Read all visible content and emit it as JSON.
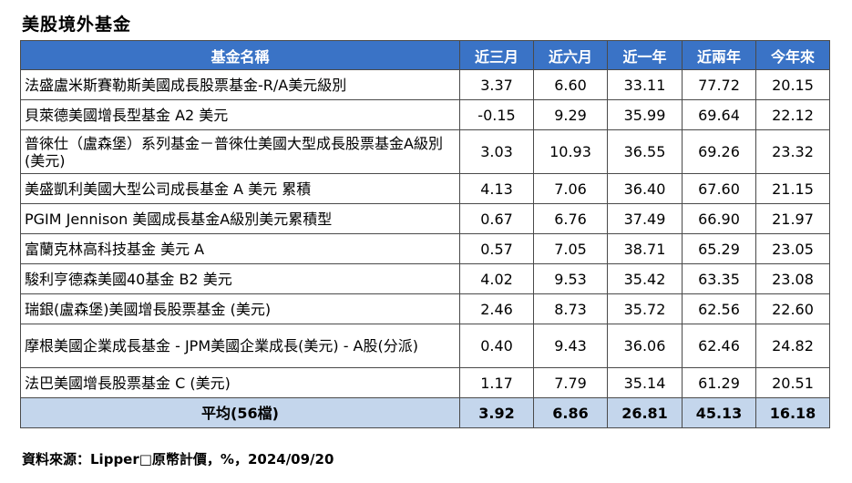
{
  "page": {
    "title": "美股境外基金",
    "source": "資料來源：Lipper□原幣計價，%，2024/09/20"
  },
  "table": {
    "headers": [
      "基金名稱",
      "近三月",
      "近六月",
      "近一年",
      "近兩年",
      "今年來"
    ],
    "rows": [
      {
        "name": "法盛盧米斯賽勒斯美國成長股票基金-R/A美元級別",
        "values": [
          "3.37",
          "6.60",
          "33.11",
          "77.72",
          "20.15"
        ]
      },
      {
        "name": "貝萊德美國增長型基金 A2 美元",
        "values": [
          "-0.15",
          "9.29",
          "35.99",
          "69.64",
          "22.12"
        ]
      },
      {
        "name": "普徠仕（盧森堡）系列基金－普徠仕美國大型成長股票基金A級別(美元)",
        "values": [
          "3.03",
          "10.93",
          "36.55",
          "69.26",
          "23.32"
        ]
      },
      {
        "name": "美盛凱利美國大型公司成長基金 A 美元 累積",
        "values": [
          "4.13",
          "7.06",
          "36.40",
          "67.60",
          "21.15"
        ]
      },
      {
        "name": "PGIM Jennison 美國成長基金A級別美元累積型",
        "values": [
          "0.67",
          "6.76",
          "37.49",
          "66.90",
          "21.97"
        ]
      },
      {
        "name": "富蘭克林高科技基金 美元 A",
        "values": [
          "0.57",
          "7.05",
          "38.71",
          "65.29",
          "23.05"
        ]
      },
      {
        "name": "駿利亨德森美國40基金 B2 美元",
        "values": [
          "4.02",
          "9.53",
          "35.42",
          "63.35",
          "23.08"
        ]
      },
      {
        "name": "瑞銀(盧森堡)美國增長股票基金 (美元)",
        "values": [
          "2.46",
          "8.73",
          "35.72",
          "62.56",
          "22.60"
        ]
      },
      {
        "name": "摩根美國企業成長基金 - JPM美國企業成長(美元) - A股(分派)",
        "values": [
          "0.40",
          "9.43",
          "36.06",
          "62.46",
          "24.82"
        ]
      },
      {
        "name": "法巴美國增長股票基金 C (美元)",
        "values": [
          "1.17",
          "7.79",
          "35.14",
          "61.29",
          "20.51"
        ]
      }
    ],
    "average": {
      "label": "平均(56檔)",
      "values": [
        "3.92",
        "6.86",
        "26.81",
        "45.13",
        "16.18"
      ]
    }
  }
}
